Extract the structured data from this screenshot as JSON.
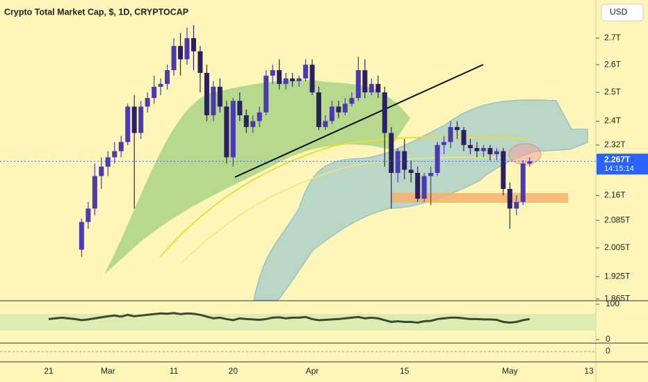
{
  "chart_data": {
    "type": "candlestick",
    "title": "Crypto Total Market Cap, $, 1D, CRYPTOCAP",
    "currency": "USD",
    "log_scale": true,
    "grid": false,
    "up_color": "#4a3bb0",
    "down_color": "#2b2160",
    "categories": [
      "21",
      null,
      null,
      null,
      null,
      null,
      null,
      null,
      null,
      "Mar",
      null,
      null,
      null,
      null,
      null,
      null,
      null,
      null,
      null,
      "11",
      null,
      null,
      null,
      null,
      null,
      null,
      null,
      null,
      "20",
      null,
      null,
      null,
      null,
      null,
      null,
      null,
      null,
      null,
      null,
      null,
      "Apr",
      null,
      null,
      null,
      null,
      null,
      null,
      null,
      null,
      null,
      null,
      null,
      null,
      null,
      "15",
      null,
      null,
      null,
      null,
      null,
      null,
      null,
      null,
      null,
      null,
      null,
      null,
      null,
      null,
      null,
      "May",
      null,
      null,
      null,
      null,
      null,
      null,
      null,
      null,
      null,
      null,
      null,
      "13"
    ],
    "open": [
      null,
      null,
      null,
      null,
      null,
      2.0,
      2.08,
      2.12,
      2.22,
      2.25,
      2.28,
      2.3,
      2.33,
      2.45,
      2.36,
      2.45,
      2.48,
      2.52,
      2.53,
      2.58,
      2.67,
      2.62,
      2.7,
      2.65,
      2.57,
      2.42,
      2.52,
      2.45,
      2.28,
      2.47,
      2.42,
      2.38,
      2.4,
      2.43,
      2.56,
      2.58,
      2.53,
      2.55,
      2.54,
      2.55,
      2.6,
      2.5,
      2.38,
      2.4,
      2.45,
      2.43,
      2.46,
      2.48,
      2.58,
      2.5,
      2.53,
      2.5,
      2.36,
      2.23,
      2.3,
      2.24,
      2.23,
      2.15,
      2.22,
      2.23,
      2.32,
      2.33,
      2.38,
      2.37,
      2.32,
      2.31,
      2.3,
      2.31,
      2.29,
      2.3,
      2.18,
      2.12,
      2.14,
      2.26,
      null,
      null,
      null,
      null,
      null,
      null,
      null,
      null,
      null
    ],
    "high": [
      null,
      null,
      null,
      null,
      null,
      2.09,
      2.14,
      2.26,
      2.28,
      2.3,
      2.33,
      2.35,
      2.46,
      2.49,
      2.47,
      2.5,
      2.56,
      2.55,
      2.6,
      2.7,
      2.72,
      2.74,
      2.75,
      2.67,
      2.6,
      2.54,
      2.55,
      2.47,
      2.48,
      2.5,
      2.44,
      2.42,
      2.45,
      2.58,
      2.6,
      2.62,
      2.57,
      2.57,
      2.56,
      2.62,
      2.62,
      2.52,
      2.42,
      2.47,
      2.47,
      2.48,
      2.5,
      2.63,
      2.62,
      2.55,
      2.56,
      2.52,
      2.38,
      2.31,
      2.34,
      2.27,
      2.25,
      2.23,
      2.25,
      2.33,
      2.35,
      2.4,
      2.4,
      2.38,
      2.34,
      2.33,
      2.32,
      2.32,
      2.31,
      2.31,
      2.2,
      2.16,
      2.27,
      2.28,
      null,
      null,
      null,
      null,
      null,
      null,
      null,
      null,
      null
    ],
    "low": [
      null,
      null,
      null,
      null,
      null,
      1.98,
      2.06,
      2.1,
      2.18,
      2.22,
      2.26,
      2.28,
      2.32,
      2.12,
      2.34,
      2.43,
      2.46,
      2.49,
      2.51,
      2.56,
      2.56,
      2.6,
      2.58,
      2.5,
      2.4,
      2.4,
      2.43,
      2.26,
      2.25,
      2.4,
      2.36,
      2.36,
      2.38,
      2.42,
      2.53,
      2.51,
      2.51,
      2.52,
      2.52,
      2.54,
      2.49,
      2.37,
      2.37,
      2.39,
      2.41,
      2.42,
      2.45,
      2.47,
      2.48,
      2.49,
      2.48,
      2.25,
      2.12,
      2.2,
      2.21,
      2.2,
      2.14,
      2.14,
      2.13,
      2.22,
      2.29,
      2.31,
      2.34,
      2.3,
      2.29,
      2.28,
      2.28,
      2.27,
      2.27,
      2.16,
      2.06,
      2.1,
      2.13,
      2.25,
      null,
      null,
      null,
      null,
      null,
      null,
      null,
      null,
      null
    ],
    "close": [
      null,
      null,
      null,
      null,
      null,
      2.08,
      2.12,
      2.22,
      2.25,
      2.28,
      2.3,
      2.33,
      2.45,
      2.36,
      2.45,
      2.48,
      2.52,
      2.53,
      2.58,
      2.67,
      2.62,
      2.7,
      2.65,
      2.57,
      2.42,
      2.52,
      2.45,
      2.28,
      2.47,
      2.42,
      2.38,
      2.4,
      2.43,
      2.56,
      2.58,
      2.53,
      2.55,
      2.54,
      2.55,
      2.6,
      2.5,
      2.38,
      2.4,
      2.45,
      2.43,
      2.46,
      2.48,
      2.58,
      2.5,
      2.53,
      2.5,
      2.36,
      2.23,
      2.3,
      2.24,
      2.23,
      2.15,
      2.22,
      2.23,
      2.32,
      2.33,
      2.38,
      2.37,
      2.32,
      2.31,
      2.3,
      2.31,
      2.29,
      2.3,
      2.18,
      2.12,
      2.14,
      2.26,
      2.267,
      null,
      null,
      null,
      null,
      null,
      null,
      null,
      null,
      null
    ],
    "ylim": [
      1.862,
      2.85
    ],
    "yticks": [
      {
        "value": 2.7,
        "label": "2.7T"
      },
      {
        "value": 2.6,
        "label": "2.6T"
      },
      {
        "value": 2.5,
        "label": "2.5T"
      },
      {
        "value": 2.4,
        "label": "2.4T"
      },
      {
        "value": 2.32,
        "label": "2.32T"
      },
      {
        "value": 2.16,
        "label": "2.16T"
      },
      {
        "value": 2.085,
        "label": "2.085T"
      },
      {
        "value": 2.005,
        "label": "2.005T"
      },
      {
        "value": 1.925,
        "label": "1.925T"
      },
      {
        "value": 1.865,
        "label": "1.865T"
      }
    ],
    "last_price": {
      "value": 2.267,
      "label": "2.267T"
    },
    "countdown": "14:15:14",
    "oscillator": {
      "ylim": [
        0,
        100
      ],
      "yticks": [
        100,
        0
      ],
      "color": "#3b4a2c",
      "values": [
        58,
        60,
        62,
        60,
        58,
        55,
        57,
        60,
        63,
        66,
        68,
        65,
        70,
        66,
        68,
        70,
        72,
        74,
        73,
        75,
        72,
        74,
        73,
        70,
        65,
        60,
        62,
        58,
        55,
        60,
        58,
        57,
        56,
        58,
        62,
        63,
        60,
        62,
        62,
        64,
        58,
        55,
        56,
        57,
        58,
        60,
        62,
        64,
        60,
        62,
        60,
        55,
        50,
        52,
        50,
        50,
        48,
        52,
        53,
        58,
        60,
        62,
        62,
        60,
        58,
        58,
        57,
        57,
        56,
        50,
        48,
        50,
        55,
        58,
        null,
        null,
        null,
        null,
        null,
        null,
        null,
        null,
        null
      ]
    },
    "histogram": {
      "yticks": [
        0
      ]
    }
  }
}
